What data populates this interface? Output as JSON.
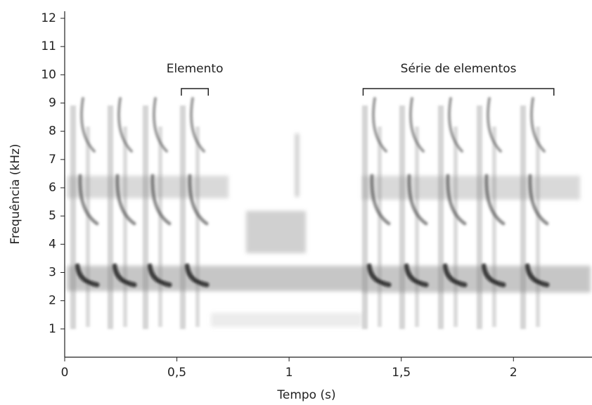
{
  "chart_data": {
    "type": "spectrogram",
    "x_label": "Tempo (s)",
    "y_label": "Frequência (kHz)",
    "xlim": [
      0,
      2.35
    ],
    "ylim": [
      0,
      12.25
    ],
    "xticks": [
      0,
      {
        "value": 0.5,
        "label": "0,5"
      },
      1,
      {
        "value": 1.5,
        "label": "1,5"
      },
      2
    ],
    "yticks": [
      1,
      2,
      3,
      4,
      5,
      6,
      7,
      8,
      9,
      10,
      11,
      12
    ],
    "annotations": [
      {
        "text": "Elemento",
        "x": [
          0.52,
          0.64
        ]
      },
      {
        "text": "Série de elementos",
        "x": [
          1.33,
          2.18
        ]
      }
    ]
  }
}
